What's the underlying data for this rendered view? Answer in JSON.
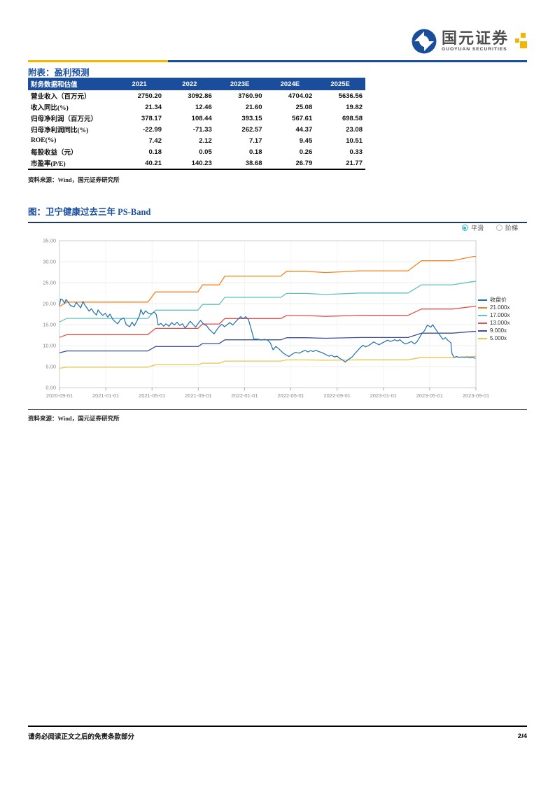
{
  "header": {
    "logo": {
      "cn": "国元证券",
      "en": "GUOYUAN SECURITIES"
    },
    "colors": {
      "brand_blue": "#1a4e9d",
      "gold": "#f2b500"
    }
  },
  "table_section": {
    "title": "附表：盈利预测",
    "columns": [
      "财务数据和估值",
      "2021",
      "2022",
      "2023E",
      "2024E",
      "2025E"
    ],
    "rows": [
      {
        "label": "营业收入（百万元）",
        "values": [
          "2750.20",
          "3092.86",
          "3760.90",
          "4704.02",
          "5636.56"
        ]
      },
      {
        "label": "收入同比(%)",
        "values": [
          "21.34",
          "12.46",
          "21.60",
          "25.08",
          "19.82"
        ]
      },
      {
        "label": "归母净利润（百万元）",
        "values": [
          "378.17",
          "108.44",
          "393.15",
          "567.61",
          "698.58"
        ]
      },
      {
        "label": "归母净利润同比(%)",
        "values": [
          "-22.99",
          "-71.33",
          "262.57",
          "44.37",
          "23.08"
        ]
      },
      {
        "label": "ROE(%)",
        "values": [
          "7.42",
          "2.12",
          "7.17",
          "9.45",
          "10.51"
        ]
      },
      {
        "label": "每股收益（元）",
        "values": [
          "0.18",
          "0.05",
          "0.18",
          "0.26",
          "0.33"
        ]
      },
      {
        "label": "市盈率(P/E)",
        "values": [
          "40.21",
          "140.23",
          "38.68",
          "26.79",
          "21.77"
        ]
      }
    ],
    "source": "资料来源：Wind，国元证券研究所"
  },
  "figure_section": {
    "title": "图：卫宁健康过去三年 PS-Band",
    "source": "资料来源：Wind，国元证券研究所",
    "controls": {
      "accent": "#2fb8c5",
      "options": [
        {
          "label": "平滑",
          "selected": true
        },
        {
          "label": "阶梯",
          "selected": false
        }
      ]
    }
  },
  "chart_data": {
    "type": "line",
    "title": "卫宁健康过去三年 PS-Band",
    "grid": true,
    "legend_position": "right",
    "x_axis": {
      "ticks": [
        "2020-09-01",
        "2021-01-01",
        "2021-05-01",
        "2021-09-01",
        "2022-01-01",
        "2022-05-01",
        "2022-09-01",
        "2023-01-01",
        "2023-05-01",
        "2023-09-01"
      ]
    },
    "y_axis": {
      "min": 0,
      "max": 35,
      "tick_labels": [
        "0.00",
        "5.00",
        "10.00",
        "15.00",
        "20.00",
        "25.00",
        "30.00",
        "35.00"
      ]
    },
    "legend": [
      {
        "name": "收盘价",
        "color": "#1f6fad"
      },
      {
        "name": "21.000x",
        "color": "#f58220"
      },
      {
        "name": "17.000x",
        "color": "#62c2be"
      },
      {
        "name": "13.000x",
        "color": "#e2504c"
      },
      {
        "name": "9.000x",
        "color": "#3d4e99"
      },
      {
        "name": "5.000x",
        "color": "#eac54f"
      }
    ],
    "bands": {
      "multipliers": [
        21,
        17,
        13,
        9,
        5
      ],
      "sales_per_share": [
        [
          "2020-09-01",
          0.92
        ],
        [
          "2020-09-20",
          0.97
        ],
        [
          "2021-04-20",
          0.97
        ],
        [
          "2021-05-10",
          1.085
        ],
        [
          "2021-08-30",
          1.085
        ],
        [
          "2021-09-12",
          1.165
        ],
        [
          "2021-10-25",
          1.165
        ],
        [
          "2021-11-10",
          1.265
        ],
        [
          "2022-04-05",
          1.265
        ],
        [
          "2022-04-20",
          1.32
        ],
        [
          "2022-06-10",
          1.32
        ],
        [
          "2022-08-01",
          1.305
        ],
        [
          "2022-11-01",
          1.325
        ],
        [
          "2023-03-05",
          1.325
        ],
        [
          "2023-04-10",
          1.44
        ],
        [
          "2023-06-30",
          1.44
        ],
        [
          "2023-08-25",
          1.487
        ],
        [
          "2023-09-01",
          1.487
        ]
      ]
    },
    "close": [
      [
        "2020-09-01",
        19.6
      ],
      [
        "2020-09-04",
        21.1
      ],
      [
        "2020-09-09",
        20.9
      ],
      [
        "2020-09-14",
        20.1
      ],
      [
        "2020-09-18",
        21.0
      ],
      [
        "2020-09-24",
        20.3
      ],
      [
        "2020-09-29",
        19.6
      ],
      [
        "2020-10-09",
        19.2
      ],
      [
        "2020-10-14",
        20.3
      ],
      [
        "2020-10-20",
        19.7
      ],
      [
        "2020-10-26",
        19.0
      ],
      [
        "2020-11-02",
        20.5
      ],
      [
        "2020-11-06",
        19.8
      ],
      [
        "2020-11-12",
        19.0
      ],
      [
        "2020-11-18",
        18.2
      ],
      [
        "2020-11-24",
        18.8
      ],
      [
        "2020-11-30",
        17.9
      ],
      [
        "2020-12-07",
        17.3
      ],
      [
        "2020-12-11",
        18.5
      ],
      [
        "2020-12-17",
        17.8
      ],
      [
        "2020-12-23",
        17.2
      ],
      [
        "2020-12-30",
        17.7
      ],
      [
        "2021-01-06",
        16.8
      ],
      [
        "2021-01-12",
        17.5
      ],
      [
        "2021-01-19",
        16.3
      ],
      [
        "2021-01-26",
        15.6
      ],
      [
        "2021-02-02",
        15.2
      ],
      [
        "2021-02-09",
        16.2
      ],
      [
        "2021-02-18",
        16.6
      ],
      [
        "2021-02-24",
        15.0
      ],
      [
        "2021-03-03",
        14.5
      ],
      [
        "2021-03-09",
        15.6
      ],
      [
        "2021-03-15",
        14.7
      ],
      [
        "2021-03-22",
        15.9
      ],
      [
        "2021-03-29",
        17.3
      ],
      [
        "2021-04-02",
        18.6
      ],
      [
        "2021-04-08",
        17.4
      ],
      [
        "2021-04-14",
        18.3
      ],
      [
        "2021-04-20",
        17.8
      ],
      [
        "2021-04-27",
        17.5
      ],
      [
        "2021-05-07",
        18.0
      ],
      [
        "2021-05-12",
        17.4
      ],
      [
        "2021-05-17",
        14.9
      ],
      [
        "2021-05-24",
        15.3
      ],
      [
        "2021-05-31",
        14.6
      ],
      [
        "2021-06-07",
        15.2
      ],
      [
        "2021-06-15",
        14.6
      ],
      [
        "2021-06-22",
        15.5
      ],
      [
        "2021-06-29",
        14.9
      ],
      [
        "2021-07-06",
        15.6
      ],
      [
        "2021-07-13",
        14.8
      ],
      [
        "2021-07-20",
        15.2
      ],
      [
        "2021-07-27",
        14.2
      ],
      [
        "2021-08-03",
        14.9
      ],
      [
        "2021-08-10",
        15.8
      ],
      [
        "2021-08-17",
        15.1
      ],
      [
        "2021-08-24",
        14.4
      ],
      [
        "2021-08-31",
        15.3
      ],
      [
        "2021-09-07",
        16.0
      ],
      [
        "2021-09-14",
        15.2
      ],
      [
        "2021-09-23",
        14.7
      ],
      [
        "2021-09-29",
        13.9
      ],
      [
        "2021-10-12",
        12.8
      ],
      [
        "2021-10-19",
        13.8
      ],
      [
        "2021-10-26",
        14.6
      ],
      [
        "2021-11-02",
        15.1
      ],
      [
        "2021-11-09",
        14.5
      ],
      [
        "2021-11-16",
        15.0
      ],
      [
        "2021-11-23",
        15.5
      ],
      [
        "2021-11-30",
        14.9
      ],
      [
        "2021-12-07",
        15.6
      ],
      [
        "2021-12-14",
        16.3
      ],
      [
        "2021-12-21",
        16.9
      ],
      [
        "2021-12-28",
        16.4
      ],
      [
        "2022-01-04",
        16.9
      ],
      [
        "2022-01-11",
        16.2
      ],
      [
        "2022-01-18",
        14.0
      ],
      [
        "2022-01-25",
        11.6
      ],
      [
        "2022-02-08",
        11.5
      ],
      [
        "2022-02-15",
        11.3
      ],
      [
        "2022-02-22",
        11.5
      ],
      [
        "2022-03-01",
        11.3
      ],
      [
        "2022-03-08",
        10.6
      ],
      [
        "2022-03-15",
        9.0
      ],
      [
        "2022-03-22",
        9.8
      ],
      [
        "2022-03-29",
        9.3
      ],
      [
        "2022-04-06",
        8.7
      ],
      [
        "2022-04-13",
        8.1
      ],
      [
        "2022-04-26",
        7.4
      ],
      [
        "2022-05-05",
        8.0
      ],
      [
        "2022-05-13",
        8.4
      ],
      [
        "2022-05-23",
        8.2
      ],
      [
        "2022-05-31",
        8.6
      ],
      [
        "2022-06-08",
        8.9
      ],
      [
        "2022-06-15",
        8.5
      ],
      [
        "2022-06-22",
        8.8
      ],
      [
        "2022-06-29",
        8.6
      ],
      [
        "2022-07-06",
        8.9
      ],
      [
        "2022-07-13",
        8.6
      ],
      [
        "2022-07-20",
        8.4
      ],
      [
        "2022-07-27",
        8.1
      ],
      [
        "2022-08-03",
        7.8
      ],
      [
        "2022-08-10",
        7.5
      ],
      [
        "2022-08-17",
        7.7
      ],
      [
        "2022-08-24",
        7.3
      ],
      [
        "2022-08-31",
        7.5
      ],
      [
        "2022-09-07",
        7.0
      ],
      [
        "2022-09-15",
        6.6
      ],
      [
        "2022-09-22",
        6.1
      ],
      [
        "2022-09-29",
        6.6
      ],
      [
        "2022-10-11",
        7.4
      ],
      [
        "2022-10-18",
        8.2
      ],
      [
        "2022-10-25",
        8.9
      ],
      [
        "2022-11-01",
        9.5
      ],
      [
        "2022-11-08",
        10.1
      ],
      [
        "2022-11-15",
        9.7
      ],
      [
        "2022-11-22",
        10.0
      ],
      [
        "2022-11-29",
        10.4
      ],
      [
        "2022-12-06",
        10.9
      ],
      [
        "2022-12-13",
        10.5
      ],
      [
        "2022-12-20",
        10.2
      ],
      [
        "2022-12-27",
        10.6
      ],
      [
        "2023-01-04",
        10.9
      ],
      [
        "2023-01-11",
        11.3
      ],
      [
        "2023-01-20",
        11.0
      ],
      [
        "2023-01-31",
        11.4
      ],
      [
        "2023-02-07",
        11.1
      ],
      [
        "2023-02-14",
        11.4
      ],
      [
        "2023-02-21",
        10.8
      ],
      [
        "2023-02-28",
        10.4
      ],
      [
        "2023-03-07",
        10.7
      ],
      [
        "2023-03-14",
        11.0
      ],
      [
        "2023-03-21",
        10.4
      ],
      [
        "2023-03-28",
        10.9
      ],
      [
        "2023-04-04",
        11.8
      ],
      [
        "2023-04-11",
        12.9
      ],
      [
        "2023-04-18",
        13.6
      ],
      [
        "2023-04-25",
        14.9
      ],
      [
        "2023-05-04",
        14.4
      ],
      [
        "2023-05-09",
        15.0
      ],
      [
        "2023-05-15",
        14.1
      ],
      [
        "2023-05-22",
        13.2
      ],
      [
        "2023-05-29",
        12.3
      ],
      [
        "2023-06-05",
        11.5
      ],
      [
        "2023-06-12",
        11.9
      ],
      [
        "2023-06-19",
        11.2
      ],
      [
        "2023-06-26",
        10.7
      ],
      [
        "2023-06-29",
        8.1
      ],
      [
        "2023-07-04",
        7.2
      ],
      [
        "2023-07-11",
        7.4
      ],
      [
        "2023-07-18",
        7.2
      ],
      [
        "2023-07-25",
        7.3
      ],
      [
        "2023-08-01",
        7.2
      ],
      [
        "2023-08-08",
        7.3
      ],
      [
        "2023-08-15",
        7.1
      ],
      [
        "2023-08-22",
        7.2
      ],
      [
        "2023-08-29",
        7.0
      ]
    ]
  },
  "footer": {
    "disclaimer": "请务必阅读正文之后的免责条款部分",
    "page_number": "2/4"
  }
}
